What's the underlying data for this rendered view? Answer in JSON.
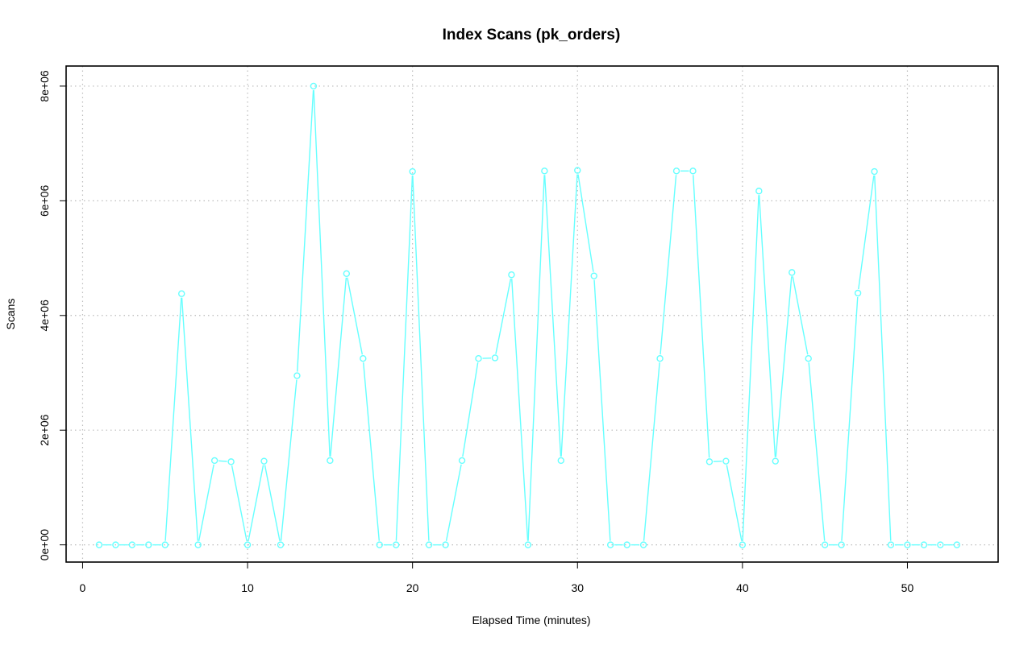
{
  "chart_data": {
    "type": "line",
    "title": "Index Scans (pk_orders)",
    "xlabel": "Elapsed Time (minutes)",
    "ylabel": "Scans",
    "xlim": [
      -1,
      55.5
    ],
    "ylim": [
      -300000,
      8350000
    ],
    "xticks": [
      0,
      10,
      20,
      30,
      40,
      50
    ],
    "xtick_labels": [
      "0",
      "10",
      "20",
      "30",
      "40",
      "50"
    ],
    "yticks": [
      0,
      2000000,
      4000000,
      6000000,
      8000000
    ],
    "ytick_labels": [
      "0e+00",
      "2e+06",
      "4e+06",
      "6e+06",
      "8e+06"
    ],
    "grid": true,
    "series_color": "#66ffff",
    "markers": "open-circle",
    "x": [
      1,
      2,
      3,
      4,
      5,
      6,
      7,
      8,
      9,
      10,
      11,
      12,
      13,
      14,
      15,
      16,
      17,
      18,
      19,
      20,
      21,
      22,
      23,
      24,
      25,
      26,
      27,
      28,
      29,
      30,
      31,
      32,
      33,
      34,
      35,
      36,
      37,
      38,
      39,
      40,
      41,
      42,
      43,
      44,
      45,
      46,
      47,
      48,
      49,
      50,
      51,
      52,
      53
    ],
    "y": [
      0,
      0,
      0,
      0,
      0,
      4380000,
      0,
      1470000,
      1450000,
      0,
      1460000,
      0,
      2950000,
      8000000,
      1470000,
      4730000,
      3250000,
      0,
      0,
      6510000,
      0,
      0,
      1470000,
      3250000,
      3260000,
      4710000,
      0,
      6520000,
      1470000,
      6530000,
      4690000,
      0,
      0,
      0,
      3250000,
      6520000,
      6520000,
      1450000,
      1460000,
      0,
      6170000,
      1460000,
      4750000,
      3250000,
      0,
      0,
      4390000,
      6510000,
      0,
      0,
      0,
      0,
      0
    ]
  }
}
